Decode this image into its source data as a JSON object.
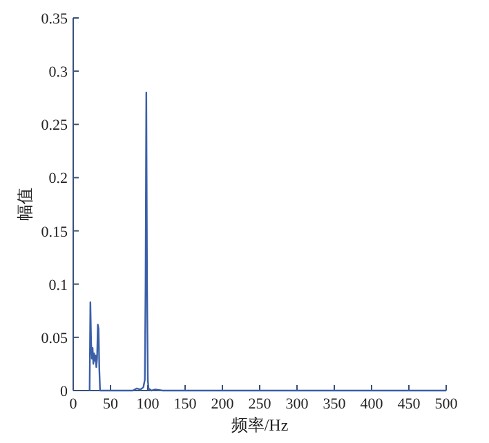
{
  "chart_data": {
    "type": "line",
    "xlabel": "频率/Hz",
    "ylabel": "幅值",
    "xlim": [
      0,
      500
    ],
    "xticks": [
      0,
      50,
      100,
      150,
      200,
      250,
      300,
      350,
      400,
      450,
      500
    ],
    "ylim": [
      0,
      0.35
    ],
    "yticks": [
      0,
      0.05,
      0.1,
      0.15,
      0.2,
      0.25,
      0.3,
      0.35
    ],
    "grid": false,
    "series": [
      {
        "color": "#3a5fa8",
        "x": [
          22,
          23,
          24,
          25,
          26,
          27,
          28,
          29,
          30,
          31,
          32,
          33,
          34,
          35,
          36,
          80,
          85,
          90,
          94,
          96,
          97,
          98,
          99,
          100,
          101,
          105,
          110,
          120,
          500
        ],
        "values": [
          0,
          0.083,
          0.045,
          0.03,
          0.04,
          0.025,
          0.035,
          0.028,
          0.033,
          0.022,
          0.03,
          0.062,
          0.058,
          0.02,
          0,
          0,
          0.002,
          0.001,
          0.003,
          0.01,
          0.1,
          0.28,
          0.1,
          0.01,
          0.002,
          0,
          0.001,
          0,
          0
        ]
      }
    ]
  }
}
